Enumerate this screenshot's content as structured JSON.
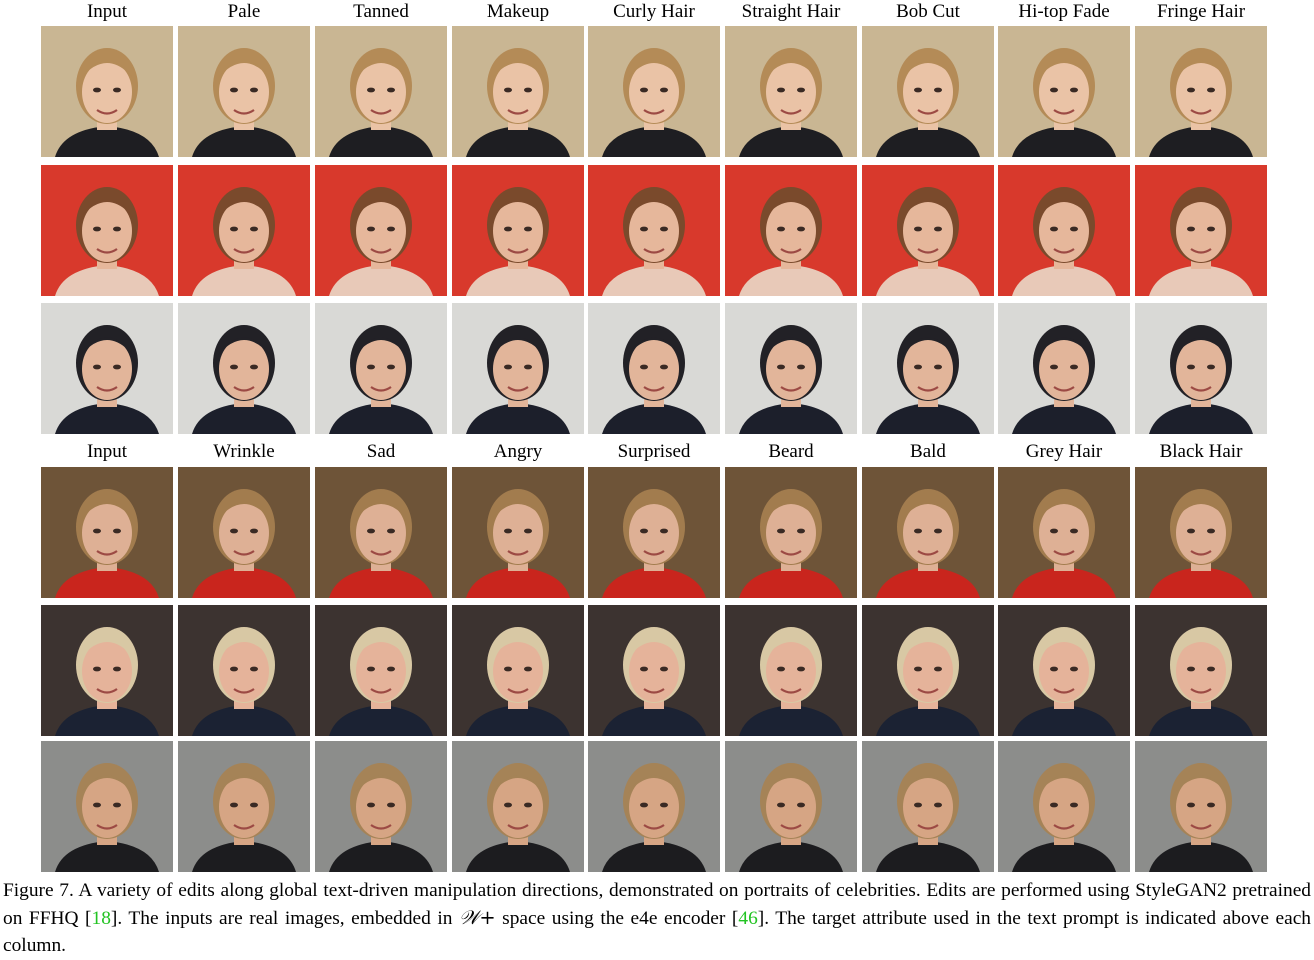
{
  "figure": {
    "top_labels": [
      "Input",
      "Pale",
      "Tanned",
      "Makeup",
      "Curly Hair",
      "Straight Hair",
      "Bob Cut",
      "Hi-top Fade",
      "Fringe Hair"
    ],
    "bottom_labels": [
      "Input",
      "Wrinkle",
      "Sad",
      "Angry",
      "Surprised",
      "Beard",
      "Bald",
      "Grey Hair",
      "Black Hair"
    ],
    "rows": [
      {
        "bg": "#c9b693",
        "skin": "#eac3a6",
        "hair": "#b48b57",
        "clothes": "#1e1e22"
      },
      {
        "bg": "#d8392c",
        "skin": "#e6b79b",
        "hair": "#7a4a2c",
        "clothes": "#e8c9b8"
      },
      {
        "bg": "#d9d9d6",
        "skin": "#e2b59a",
        "hair": "#222126",
        "clothes": "#1c1f2b"
      },
      {
        "bg": "#6e5438",
        "skin": "#deb095",
        "hair": "#a27c4e",
        "clothes": "#c9251d"
      },
      {
        "bg": "#3c3330",
        "skin": "#e5b39a",
        "hair": "#d8c8a4",
        "clothes": "#1b2233"
      },
      {
        "bg": "#8c8d8b",
        "skin": "#d6a584",
        "hair": "#a58357",
        "clothes": "#1c1c1f"
      }
    ],
    "caption": {
      "part1": "Figure 7. A variety of edits along global text-driven manipulation directions, demonstrated on portraits of celebrities. Edits are performed using StyleGAN2 pretrained on FFHQ [",
      "ref1": "18",
      "part2": "]. The inputs are real images, embedded in ",
      "space": "𝒲+",
      "part3": " space using the e4e encoder [",
      "ref2": "46",
      "part4": "]. The target attribute used in the text prompt is indicated above each column."
    }
  }
}
